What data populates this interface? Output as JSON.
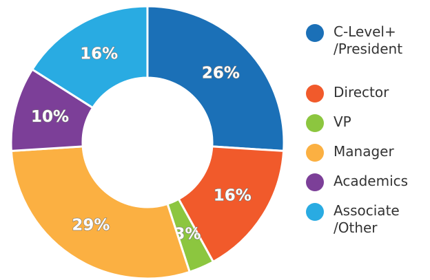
{
  "chart_data": {
    "type": "donut",
    "categories": [
      "C-Level+ /President",
      "Director",
      "VP",
      "Manager",
      "Academics",
      "Associate /Other"
    ],
    "values": [
      26,
      16,
      3,
      29,
      10,
      16
    ],
    "value_labels": [
      "26%",
      "16%",
      "3%",
      "29%",
      "10%",
      "16%"
    ],
    "colors": [
      "#1b70b7",
      "#f15a2b",
      "#8cc63f",
      "#fbb042",
      "#7c3f98",
      "#29abe2"
    ],
    "legend": "right"
  }
}
